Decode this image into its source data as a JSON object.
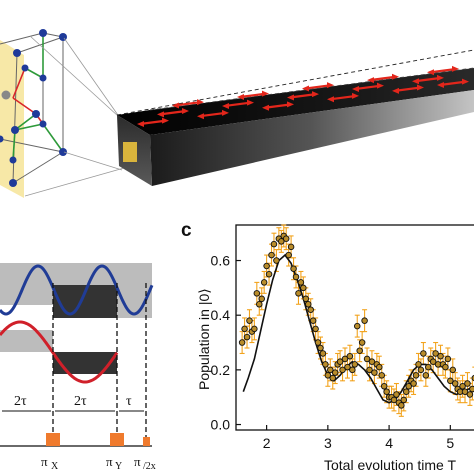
{
  "colors": {
    "waveguide_dark": "#111111",
    "aperture": "#d9b43c",
    "crystal_plane": "#f4e08a",
    "arrow_red": "#e3261b",
    "wave_blue": "#203c96",
    "wave_red": "#d0202a",
    "pulse_orange": "#ef7a2d",
    "errorbar_orange": "#f2a31d",
    "marker_fill": "#b98c2a"
  },
  "icons": [
    "nv-crystal-lattice-icon",
    "diamond-waveguide-icon"
  ],
  "panel_c": {
    "letter": "c"
  },
  "sequence": {
    "interval_labels": [
      "2τ",
      "2τ",
      "τ"
    ],
    "pulse_labels": [
      "π",
      "X",
      "π",
      "Y",
      "π",
      "/2x"
    ]
  },
  "chart_data": {
    "type": "scatter",
    "title": "",
    "xlabel": "Total evolution time T",
    "ylabel": "Population in |0⟩",
    "xlim": [
      1.5,
      5.55
    ],
    "ylim": [
      -0.02,
      0.73
    ],
    "xticks": [
      2,
      3,
      4,
      5
    ],
    "yticks": [
      0.0,
      0.2,
      0.4,
      0.6
    ],
    "grid": false,
    "series": [
      {
        "kind": "points_with_errorbars",
        "x": [
          1.6,
          1.64,
          1.68,
          1.72,
          1.76,
          1.8,
          1.84,
          1.88,
          1.92,
          1.96,
          2.0,
          2.04,
          2.08,
          2.12,
          2.16,
          2.2,
          2.24,
          2.28,
          2.32,
          2.36,
          2.4,
          2.44,
          2.48,
          2.52,
          2.56,
          2.6,
          2.64,
          2.68,
          2.72,
          2.76,
          2.8,
          2.84,
          2.88,
          2.92,
          2.96,
          3.0,
          3.04,
          3.08,
          3.12,
          3.16,
          3.2,
          3.24,
          3.28,
          3.32,
          3.36,
          3.4,
          3.44,
          3.48,
          3.52,
          3.56,
          3.6,
          3.64,
          3.68,
          3.72,
          3.76,
          3.8,
          3.84,
          3.88,
          3.92,
          3.96,
          4.0,
          4.04,
          4.08,
          4.12,
          4.16,
          4.2,
          4.24,
          4.28,
          4.32,
          4.36,
          4.4,
          4.44,
          4.48,
          4.52,
          4.56,
          4.6,
          4.64,
          4.68,
          4.72,
          4.76,
          4.8,
          4.84,
          4.88,
          4.92,
          4.96,
          5.0,
          5.04,
          5.08,
          5.12,
          5.16,
          5.2,
          5.24,
          5.28,
          5.32,
          5.36,
          5.4,
          5.44,
          5.48,
          5.52
        ],
        "y": [
          0.3,
          0.35,
          0.32,
          0.38,
          0.34,
          0.35,
          0.48,
          0.44,
          0.46,
          0.52,
          0.58,
          0.55,
          0.62,
          0.66,
          0.6,
          0.68,
          0.67,
          0.69,
          0.68,
          0.62,
          0.65,
          0.57,
          0.54,
          0.48,
          0.52,
          0.5,
          0.46,
          0.44,
          0.42,
          0.38,
          0.35,
          0.3,
          0.28,
          0.26,
          0.22,
          0.18,
          0.2,
          0.17,
          0.19,
          0.22,
          0.23,
          0.2,
          0.24,
          0.21,
          0.25,
          0.2,
          0.22,
          0.36,
          0.27,
          0.3,
          0.38,
          0.24,
          0.2,
          0.23,
          0.19,
          0.22,
          0.21,
          0.18,
          0.14,
          0.12,
          0.1,
          0.1,
          0.09,
          0.11,
          0.08,
          0.07,
          0.09,
          0.12,
          0.14,
          0.16,
          0.15,
          0.18,
          0.22,
          0.2,
          0.26,
          0.18,
          0.21,
          0.24,
          0.23,
          0.26,
          0.22,
          0.25,
          0.22,
          0.21,
          0.24,
          0.16,
          0.2,
          0.15,
          0.13,
          0.12,
          0.14,
          0.12,
          0.15,
          0.11,
          0.13,
          0.17,
          0.14,
          0.16,
          0.15
        ],
        "yerr": 0.04
      },
      {
        "kind": "line",
        "x": [
          1.62,
          1.7,
          1.8,
          1.9,
          2.0,
          2.1,
          2.2,
          2.3,
          2.4,
          2.5,
          2.6,
          2.7,
          2.8,
          2.9,
          3.0,
          3.1,
          3.2,
          3.3,
          3.4,
          3.5,
          3.6,
          3.7,
          3.8,
          3.9,
          4.0,
          4.1,
          4.2,
          4.3,
          4.4,
          4.5,
          4.6,
          4.7,
          4.8,
          4.9,
          5.0,
          5.1,
          5.2,
          5.3,
          5.4,
          5.5
        ],
        "y": [
          0.12,
          0.17,
          0.24,
          0.34,
          0.44,
          0.53,
          0.6,
          0.62,
          0.59,
          0.53,
          0.46,
          0.38,
          0.3,
          0.23,
          0.18,
          0.16,
          0.18,
          0.21,
          0.23,
          0.22,
          0.2,
          0.17,
          0.13,
          0.09,
          0.08,
          0.09,
          0.12,
          0.16,
          0.2,
          0.22,
          0.22,
          0.2,
          0.17,
          0.14,
          0.12,
          0.11,
          0.12,
          0.13,
          0.14,
          0.15
        ]
      }
    ]
  }
}
